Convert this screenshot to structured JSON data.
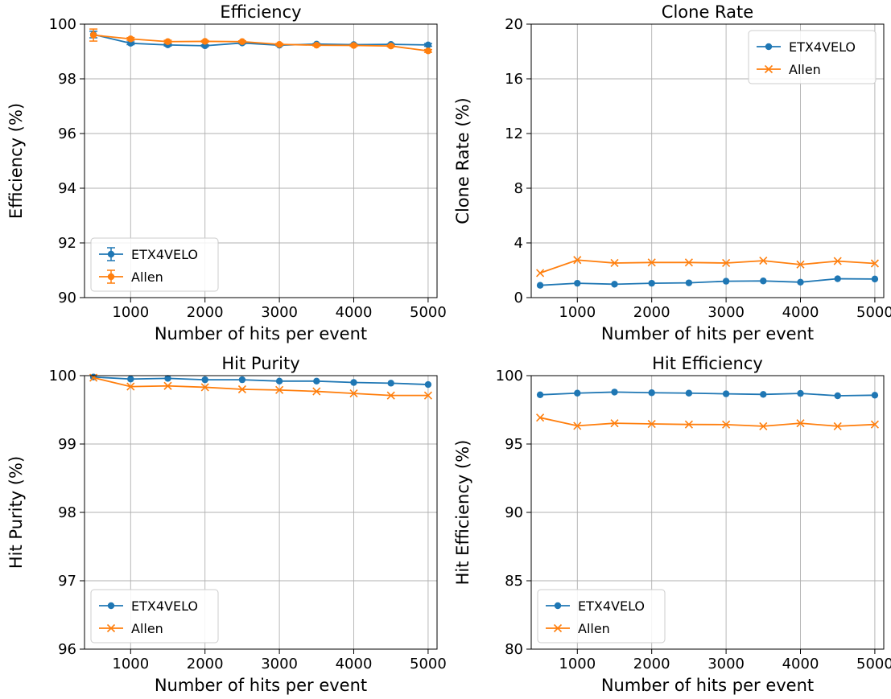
{
  "figure": {
    "colors": {
      "etx": "#1f77b4",
      "allen": "#ff7f0e",
      "grid": "#b0b0b0",
      "legend_edge": "#cccccc"
    }
  },
  "chart_data": [
    {
      "type": "line",
      "title": "Efficiency",
      "xlabel": "Number of hits per event",
      "ylabel": "Efficiency (%)",
      "xlim": [
        380,
        5120
      ],
      "ylim": [
        90,
        100
      ],
      "xticks": [
        1000,
        2000,
        3000,
        4000,
        5000
      ],
      "yticks": [
        90,
        92,
        94,
        96,
        98,
        100
      ],
      "grid": true,
      "legend_position": "lower-left",
      "x": [
        500,
        1000,
        1500,
        2000,
        2500,
        3000,
        3500,
        4000,
        4500,
        5000
      ],
      "series": [
        {
          "name": "ETX4VELO",
          "marker": "o",
          "values": [
            99.62,
            99.3,
            99.24,
            99.21,
            99.31,
            99.23,
            99.27,
            99.25,
            99.26,
            99.24
          ],
          "errors": [
            0.12,
            0.05,
            0.04,
            0.03,
            0.03,
            0.02,
            0.02,
            0.02,
            0.02,
            0.05
          ]
        },
        {
          "name": "Allen",
          "marker": "o",
          "values": [
            99.6,
            99.46,
            99.36,
            99.37,
            99.36,
            99.26,
            99.23,
            99.22,
            99.2,
            99.02
          ],
          "errors": [
            0.22,
            0.05,
            0.05,
            0.03,
            0.03,
            0.03,
            0.03,
            0.03,
            0.03,
            0.05
          ]
        }
      ]
    },
    {
      "type": "line",
      "title": "Clone Rate",
      "xlabel": "Number of hits per event",
      "ylabel": "Clone Rate (%)",
      "xlim": [
        380,
        5120
      ],
      "ylim": [
        0,
        20
      ],
      "xticks": [
        1000,
        2000,
        3000,
        4000,
        5000
      ],
      "yticks": [
        0,
        4,
        8,
        12,
        16,
        20
      ],
      "grid": true,
      "legend_position": "upper-right",
      "x": [
        500,
        1000,
        1500,
        2000,
        2500,
        3000,
        3500,
        4000,
        4500,
        5000
      ],
      "series": [
        {
          "name": "ETX4VELO",
          "marker": "o",
          "values": [
            0.9,
            1.05,
            0.98,
            1.05,
            1.08,
            1.2,
            1.22,
            1.13,
            1.38,
            1.36
          ]
        },
        {
          "name": "Allen",
          "marker": "x",
          "values": [
            1.8,
            2.75,
            2.53,
            2.57,
            2.57,
            2.53,
            2.7,
            2.42,
            2.67,
            2.5
          ]
        }
      ]
    },
    {
      "type": "line",
      "title": "Hit Purity",
      "xlabel": "Number of hits per event",
      "ylabel": "Hit Purity (%)",
      "xlim": [
        380,
        5120
      ],
      "ylim": [
        96,
        100
      ],
      "xticks": [
        1000,
        2000,
        3000,
        4000,
        5000
      ],
      "yticks": [
        96,
        97,
        98,
        99,
        100
      ],
      "grid": true,
      "legend_position": "lower-left",
      "x": [
        500,
        1000,
        1500,
        2000,
        2500,
        3000,
        3500,
        4000,
        4500,
        5000
      ],
      "series": [
        {
          "name": "ETX4VELO",
          "marker": "o",
          "values": [
            99.98,
            99.95,
            99.96,
            99.94,
            99.94,
            99.92,
            99.92,
            99.9,
            99.89,
            99.87
          ]
        },
        {
          "name": "Allen",
          "marker": "x",
          "values": [
            99.97,
            99.84,
            99.85,
            99.83,
            99.8,
            99.79,
            99.77,
            99.74,
            99.71,
            99.71
          ]
        }
      ]
    },
    {
      "type": "line",
      "title": "Hit Efficiency",
      "xlabel": "Number of hits per event",
      "ylabel": "Hit Efficiency (%)",
      "xlim": [
        380,
        5120
      ],
      "ylim": [
        80,
        100
      ],
      "xticks": [
        1000,
        2000,
        3000,
        4000,
        5000
      ],
      "yticks": [
        80,
        85,
        90,
        95,
        100
      ],
      "grid": true,
      "legend_position": "lower-left",
      "x": [
        500,
        1000,
        1500,
        2000,
        2500,
        3000,
        3500,
        4000,
        4500,
        5000
      ],
      "series": [
        {
          "name": "ETX4VELO",
          "marker": "o",
          "values": [
            98.6,
            98.72,
            98.8,
            98.75,
            98.72,
            98.67,
            98.63,
            98.7,
            98.53,
            98.57
          ]
        },
        {
          "name": "Allen",
          "marker": "x",
          "values": [
            96.93,
            96.33,
            96.52,
            96.47,
            96.43,
            96.42,
            96.3,
            96.52,
            96.3,
            96.43
          ]
        }
      ]
    }
  ]
}
